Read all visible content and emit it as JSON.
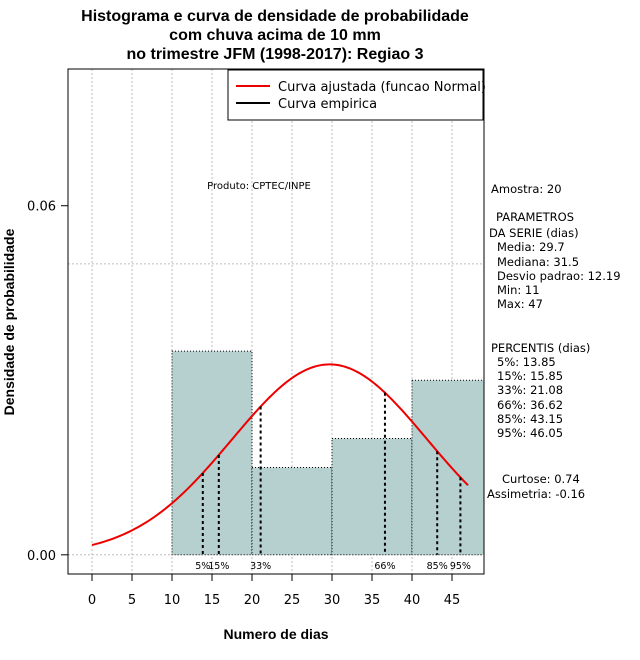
{
  "chart_data": {
    "type": "bar",
    "title": [
      "Histograma e curva de densidade de probabilidade",
      "com chuva acima de 10 mm",
      "no trimestre JFM (1998-2017): Regiao 3"
    ],
    "xlabel": "Numero de dias",
    "ylabel": "Densidade de probabilidade",
    "xlim": [
      -3,
      49
    ],
    "ylim": [
      -0.0033,
      0.0835
    ],
    "x_ticks": [
      0,
      5,
      10,
      15,
      20,
      25,
      30,
      35,
      40,
      45
    ],
    "x_tick_labels": [
      "0",
      "5",
      "10",
      "15",
      "20",
      "25",
      "30",
      "35",
      "40",
      "45"
    ],
    "y_ticks": [
      0.0,
      0.06
    ],
    "y_tick_labels": [
      "0.00",
      "0.06"
    ],
    "x_grid": [
      0,
      5,
      10,
      15,
      20,
      25,
      30,
      35,
      40,
      45
    ],
    "y_grid": [
      0.0,
      0.05
    ],
    "bins": [
      {
        "start": 10,
        "end": 20,
        "density": 0.035
      },
      {
        "start": 20,
        "end": 30,
        "density": 0.015
      },
      {
        "start": 30,
        "end": 40,
        "density": 0.02
      },
      {
        "start": 40,
        "end": 50,
        "density": 0.03
      }
    ],
    "normal_curve": {
      "mean": 29.7,
      "sd": 12.19,
      "x_from": 0,
      "x_to": 47,
      "color": "#ee0000"
    },
    "percentile_lines": [
      {
        "label": "5%",
        "value": 13.85
      },
      {
        "label": "15%",
        "value": 15.85
      },
      {
        "label": "33%",
        "value": 21.08
      },
      {
        "label": "66%",
        "value": 36.62
      },
      {
        "label": "85%",
        "value": 43.15
      },
      {
        "label": "95%",
        "value": 46.05
      }
    ],
    "legend": {
      "position": "top-right",
      "entries": [
        {
          "label": "Curva ajustada (funcao Normal)",
          "color": "#ee0000"
        },
        {
          "label": "Curva empirica",
          "color": "#000000"
        }
      ]
    },
    "annotation": "Produto: CPTEC/INPE",
    "bar_color": "#b6cfcf"
  },
  "stats_panel": {
    "amostra": "Amostra: 20",
    "params_header_1": "PARAMETROS",
    "params_header_2": "DA SERIE (dias)",
    "media": "Media: 29.7",
    "mediana": "Mediana: 31.5",
    "desvio": "Desvio padrao: 12.19",
    "min": "Min: 11",
    "max": "Max: 47",
    "percentis_header": "PERCENTIS (dias)",
    "p5": "5%: 13.85",
    "p15": "15%: 15.85",
    "p33": "33%: 21.08",
    "p66": "66%: 36.62",
    "p85": "85%: 43.15",
    "p95": "95%: 46.05",
    "curtose": "Curtose: 0.74",
    "assimetria": "Assimetria: -0.16"
  }
}
